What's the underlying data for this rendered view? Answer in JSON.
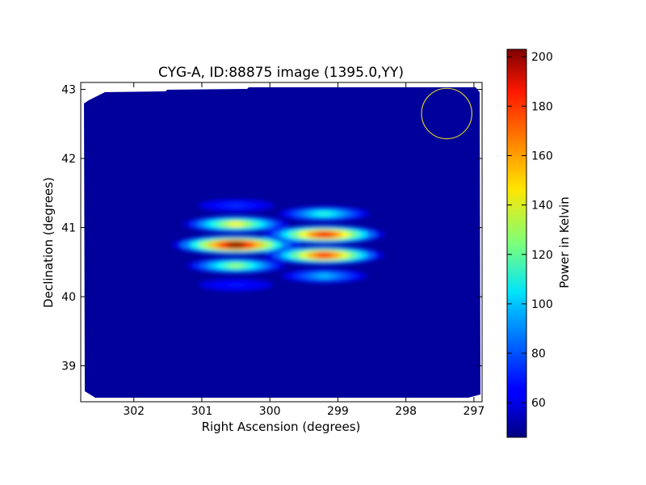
{
  "chart_data": {
    "type": "heatmap",
    "title": "CYG-A, ID:88875 image (1395.0,YY)",
    "xlabel": "Right Ascension (degrees)",
    "ylabel": "Declination (degrees)",
    "colorbar_label": "Power in Kelvin",
    "xlim": [
      302.78,
      296.88
    ],
    "ylim": [
      38.48,
      43.1
    ],
    "x_ticks": [
      302,
      301,
      300,
      299,
      298,
      297
    ],
    "x_tick_labels": [
      "302",
      "301",
      "300",
      "299",
      "298",
      "297"
    ],
    "y_ticks": [
      39,
      40,
      41,
      42,
      43
    ],
    "y_tick_labels": [
      "39",
      "40",
      "41",
      "42",
      "43"
    ],
    "colorbar_range": [
      46,
      203
    ],
    "colorbar_ticks": [
      60,
      80,
      100,
      120,
      140,
      160,
      180,
      200
    ],
    "colorbar_tick_labels": [
      "60",
      "80",
      "100",
      "120",
      "140",
      "160",
      "180",
      "200"
    ],
    "colormap": "jet",
    "background_level": 50,
    "beam_circle": {
      "ra": 297.4,
      "dec": 42.65,
      "radius_deg": 0.37,
      "color": "#d4c830"
    },
    "sources": [
      {
        "ra": 300.5,
        "dec": 40.75,
        "peak": 203
      },
      {
        "ra": 299.2,
        "dec": 40.75,
        "peak": 185
      }
    ],
    "fringes": [
      {
        "source": 0,
        "dec": 41.05,
        "peak": 145
      },
      {
        "source": 0,
        "dec": 40.75,
        "peak": 203
      },
      {
        "source": 0,
        "dec": 40.45,
        "peak": 128
      },
      {
        "source": 0,
        "dec": 41.32,
        "peak": 72
      },
      {
        "source": 0,
        "dec": 40.17,
        "peak": 68
      },
      {
        "source": 1,
        "dec": 41.2,
        "peak": 110
      },
      {
        "source": 1,
        "dec": 40.9,
        "peak": 185
      },
      {
        "source": 1,
        "dec": 40.6,
        "peak": 180
      },
      {
        "source": 1,
        "dec": 40.3,
        "peak": 95
      }
    ]
  }
}
